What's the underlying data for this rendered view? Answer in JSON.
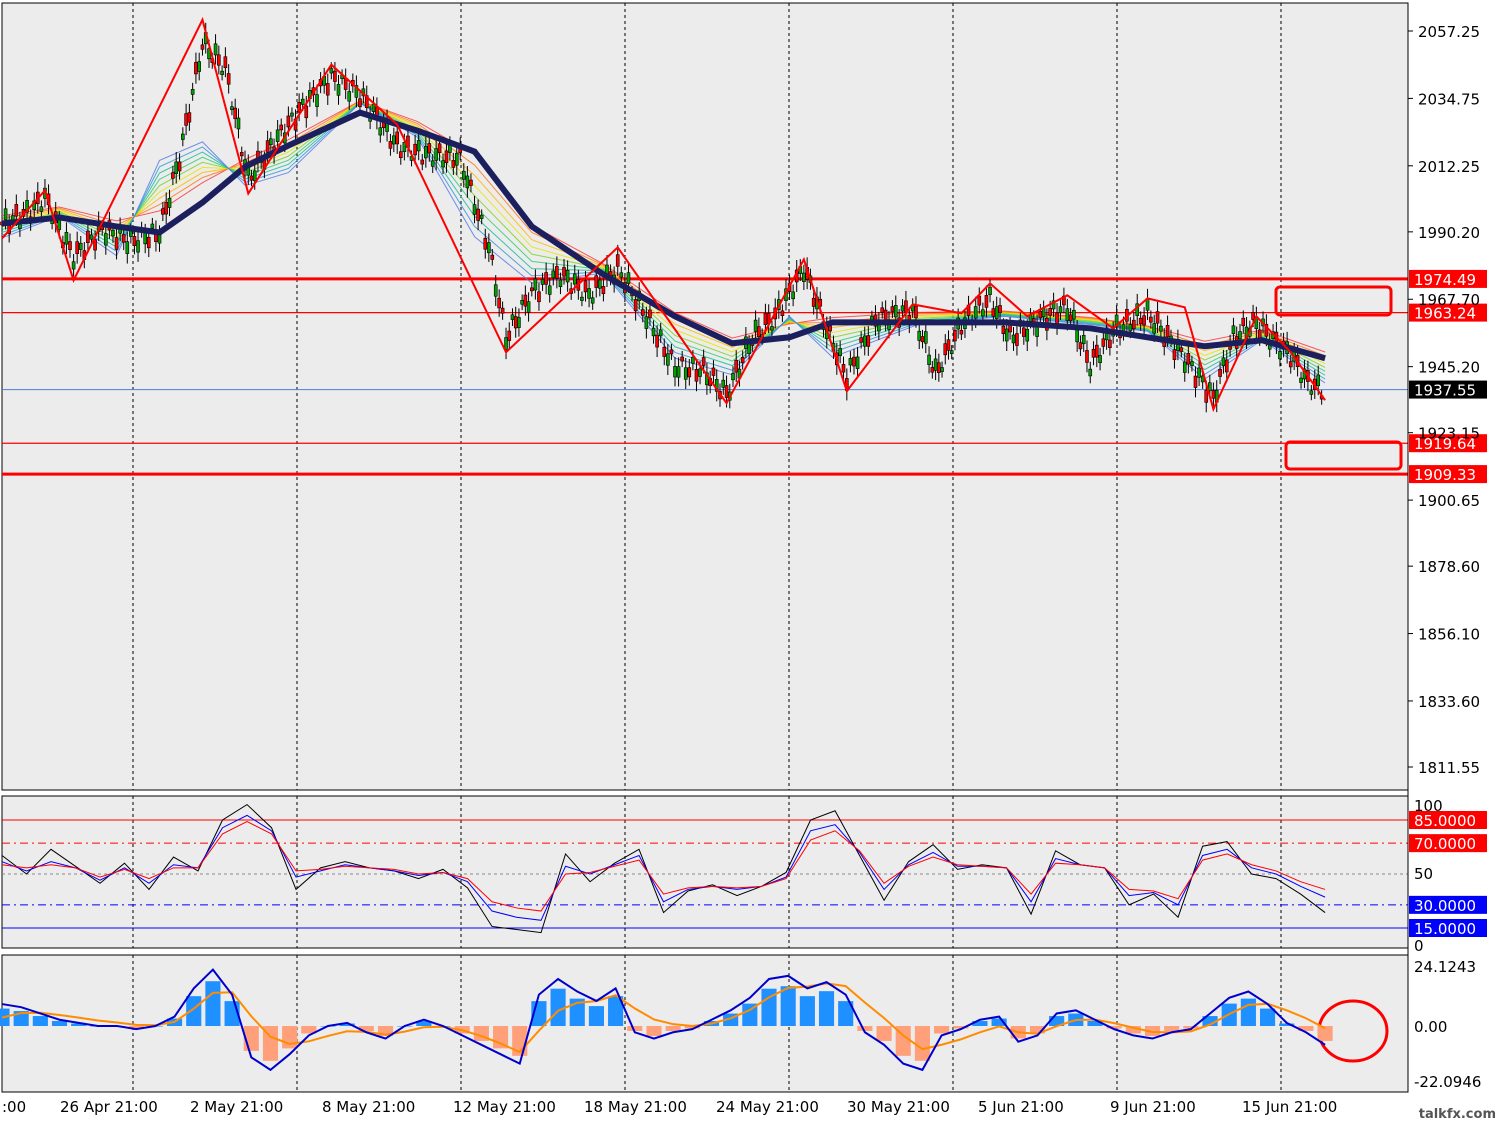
{
  "watermark": "talkfx.com",
  "colors": {
    "panel_bg": "#ececec",
    "level_red": "#ff0000",
    "current_price_line": "#4a7fe0",
    "zigzag": "#ff0000",
    "main_ma": "#1b1f5e",
    "macd_line": "#0000cc",
    "signal_line": "#ff8c00",
    "hist_up": "#1e90ff",
    "hist_down": "#ffa07a"
  },
  "chart_data": [
    {
      "type": "candlestick",
      "panel": "price",
      "y_ticks": [
        "2057.25",
        "2034.75",
        "2012.25",
        "1990.20",
        "1967.70",
        "1945.20",
        "1923.15",
        "1900.65",
        "1878.60",
        "1856.10",
        "1833.60",
        "1811.55"
      ],
      "ylim": [
        1800,
        2062
      ],
      "x_ticks": [
        ":00",
        "26 Apr 21:00",
        "2 May 21:00",
        "8 May 21:00",
        "12 May 21:00",
        "18 May 21:00",
        "24 May 21:00",
        "30 May 21:00",
        "5 Jun 21:00",
        "9 Jun 21:00",
        "15 Jun 21:00"
      ],
      "current_price": {
        "label": "1937.55",
        "value": 1937.55
      },
      "levels": [
        {
          "label": "1974.49",
          "value": 1974.49,
          "style": "thick"
        },
        {
          "label": "1963.24",
          "value": 1963.24,
          "style": "thin"
        },
        {
          "label": "1919.64",
          "value": 1919.64,
          "style": "thin"
        },
        {
          "label": "1909.33",
          "value": 1909.33,
          "style": "thick"
        }
      ],
      "zigzag": [
        {
          "bar": 0,
          "value": 1988
        },
        {
          "bar": 15,
          "value": 2004
        },
        {
          "bar": 25,
          "value": 1974
        },
        {
          "bar": 70,
          "value": 2061
        },
        {
          "bar": 86,
          "value": 2003
        },
        {
          "bar": 115,
          "value": 2046
        },
        {
          "bar": 138,
          "value": 2026
        },
        {
          "bar": 176,
          "value": 1950
        },
        {
          "bar": 215,
          "value": 1985
        },
        {
          "bar": 253,
          "value": 1933
        },
        {
          "bar": 280,
          "value": 1981
        },
        {
          "bar": 295,
          "value": 1937
        },
        {
          "bar": 318,
          "value": 1966
        },
        {
          "bar": 335,
          "value": 1963
        },
        {
          "bar": 345,
          "value": 1973
        },
        {
          "bar": 358,
          "value": 1962
        },
        {
          "bar": 372,
          "value": 1969
        },
        {
          "bar": 388,
          "value": 1958
        },
        {
          "bar": 400,
          "value": 1968
        },
        {
          "bar": 413,
          "value": 1965
        },
        {
          "bar": 423,
          "value": 1931
        },
        {
          "bar": 438,
          "value": 1962
        },
        {
          "bar": 450,
          "value": 1950
        },
        {
          "bar": 462,
          "value": 1934
        }
      ],
      "ma_path": [
        {
          "bar": 0,
          "value": 1993
        },
        {
          "bar": 20,
          "value": 1995
        },
        {
          "bar": 40,
          "value": 1992
        },
        {
          "bar": 55,
          "value": 1990
        },
        {
          "bar": 70,
          "value": 2000
        },
        {
          "bar": 85,
          "value": 2012
        },
        {
          "bar": 100,
          "value": 2019
        },
        {
          "bar": 125,
          "value": 2030
        },
        {
          "bar": 145,
          "value": 2024
        },
        {
          "bar": 165,
          "value": 2017
        },
        {
          "bar": 185,
          "value": 1992
        },
        {
          "bar": 210,
          "value": 1976
        },
        {
          "bar": 235,
          "value": 1962
        },
        {
          "bar": 255,
          "value": 1953
        },
        {
          "bar": 275,
          "value": 1955
        },
        {
          "bar": 290,
          "value": 1960
        },
        {
          "bar": 320,
          "value": 1960
        },
        {
          "bar": 350,
          "value": 1960
        },
        {
          "bar": 380,
          "value": 1958
        },
        {
          "bar": 400,
          "value": 1955
        },
        {
          "bar": 420,
          "value": 1952
        },
        {
          "bar": 440,
          "value": 1954
        },
        {
          "bar": 462,
          "value": 1948
        }
      ],
      "candles": [
        {
          "x": 0,
          "v": 1993
        },
        {
          "x": 10,
          "v": 1997
        },
        {
          "x": 15,
          "v": 2002
        },
        {
          "x": 20,
          "v": 1991
        },
        {
          "x": 25,
          "v": 1982
        },
        {
          "x": 35,
          "v": 1991
        },
        {
          "x": 45,
          "v": 1987
        },
        {
          "x": 55,
          "v": 1990
        },
        {
          "x": 62,
          "v": 2015
        },
        {
          "x": 70,
          "v": 2053
        },
        {
          "x": 78,
          "v": 2045
        },
        {
          "x": 86,
          "v": 2008
        },
        {
          "x": 95,
          "v": 2020
        },
        {
          "x": 105,
          "v": 2032
        },
        {
          "x": 115,
          "v": 2042
        },
        {
          "x": 125,
          "v": 2036
        },
        {
          "x": 138,
          "v": 2019
        },
        {
          "x": 148,
          "v": 2016
        },
        {
          "x": 160,
          "v": 2015
        },
        {
          "x": 170,
          "v": 1985
        },
        {
          "x": 176,
          "v": 1955
        },
        {
          "x": 185,
          "v": 1970
        },
        {
          "x": 195,
          "v": 1976
        },
        {
          "x": 205,
          "v": 1969
        },
        {
          "x": 215,
          "v": 1978
        },
        {
          "x": 225,
          "v": 1962
        },
        {
          "x": 235,
          "v": 1945
        },
        {
          "x": 245,
          "v": 1944
        },
        {
          "x": 253,
          "v": 1936
        },
        {
          "x": 262,
          "v": 1955
        },
        {
          "x": 270,
          "v": 1962
        },
        {
          "x": 280,
          "v": 1978
        },
        {
          "x": 288,
          "v": 1958
        },
        {
          "x": 295,
          "v": 1942
        },
        {
          "x": 305,
          "v": 1961
        },
        {
          "x": 318,
          "v": 1964
        },
        {
          "x": 326,
          "v": 1943
        },
        {
          "x": 335,
          "v": 1959
        },
        {
          "x": 345,
          "v": 1968
        },
        {
          "x": 352,
          "v": 1955
        },
        {
          "x": 358,
          "v": 1958
        },
        {
          "x": 366,
          "v": 1963
        },
        {
          "x": 372,
          "v": 1965
        },
        {
          "x": 380,
          "v": 1946
        },
        {
          "x": 388,
          "v": 1957
        },
        {
          "x": 400,
          "v": 1963
        },
        {
          "x": 407,
          "v": 1955
        },
        {
          "x": 413,
          "v": 1948
        },
        {
          "x": 423,
          "v": 1935
        },
        {
          "x": 430,
          "v": 1955
        },
        {
          "x": 438,
          "v": 1960
        },
        {
          "x": 445,
          "v": 1953
        },
        {
          "x": 450,
          "v": 1949
        },
        {
          "x": 456,
          "v": 1940
        },
        {
          "x": 462,
          "v": 1937
        }
      ]
    },
    {
      "type": "line",
      "panel": "stochastic",
      "ylim": [
        0,
        100
      ],
      "y_ticks": [
        "100",
        "50",
        "0"
      ],
      "levels": [
        {
          "label": "85.0000",
          "value": 85,
          "color": "#ff0000"
        },
        {
          "label": "70.0000",
          "value": 70,
          "color": "#ff0000"
        },
        {
          "label": "30.0000",
          "value": 30,
          "color": "#0000ff"
        },
        {
          "label": "15.0000",
          "value": 15,
          "color": "#0000ff"
        }
      ],
      "series": [
        {
          "color": "#000000",
          "values": [
            62,
            50,
            66,
            55,
            44,
            57,
            40,
            61,
            52,
            85,
            95,
            80,
            40,
            54,
            58,
            54,
            52,
            47,
            53,
            41,
            16,
            14,
            12,
            63,
            45,
            57,
            66,
            25,
            39,
            43,
            36,
            42,
            51,
            85,
            91,
            62,
            33,
            58,
            69,
            53,
            56,
            54,
            24,
            65,
            56,
            54,
            30,
            37,
            22,
            68,
            71,
            50,
            47,
            37,
            25
          ]
        },
        {
          "color": "#0000ff",
          "values": [
            58,
            52,
            58,
            54,
            46,
            54,
            44,
            56,
            54,
            80,
            88,
            78,
            48,
            52,
            56,
            54,
            52,
            49,
            51,
            45,
            26,
            22,
            20,
            55,
            50,
            56,
            62,
            32,
            40,
            42,
            40,
            42,
            48,
            78,
            82,
            64,
            40,
            56,
            64,
            55,
            55,
            54,
            32,
            60,
            56,
            54,
            36,
            38,
            30,
            62,
            66,
            54,
            50,
            42,
            35
          ]
        },
        {
          "color": "#ff0000",
          "values": [
            56,
            54,
            56,
            54,
            48,
            53,
            47,
            54,
            54,
            76,
            84,
            76,
            52,
            53,
            55,
            54,
            53,
            50,
            51,
            47,
            32,
            28,
            26,
            50,
            51,
            55,
            59,
            37,
            41,
            42,
            41,
            42,
            47,
            72,
            78,
            65,
            44,
            55,
            61,
            56,
            55,
            54,
            37,
            57,
            56,
            54,
            40,
            39,
            34,
            59,
            63,
            56,
            52,
            45,
            40
          ]
        }
      ]
    },
    {
      "type": "bar",
      "panel": "macd",
      "ylim": [
        -22.0946,
        24.1243
      ],
      "y_ticks": [
        "24.1243",
        "0.00",
        "-22.0946"
      ],
      "histogram": [
        7,
        6,
        4,
        2,
        1,
        0,
        0,
        -1,
        0,
        3,
        12,
        18,
        10,
        -10,
        -14,
        -9,
        -3,
        0,
        1,
        -2,
        -4,
        0,
        2,
        0,
        -3,
        -6,
        -9,
        -12,
        10,
        15,
        11,
        8,
        12,
        -2,
        -4,
        -2,
        -1,
        2,
        5,
        9,
        15,
        16,
        12,
        14,
        10,
        -2,
        -6,
        -12,
        -14,
        -3,
        -1,
        2,
        3,
        -5,
        -3,
        4,
        5,
        2,
        -1,
        -3,
        -4,
        -2,
        -1,
        4,
        9,
        11,
        7,
        1,
        -2,
        -6
      ]
    }
  ]
}
